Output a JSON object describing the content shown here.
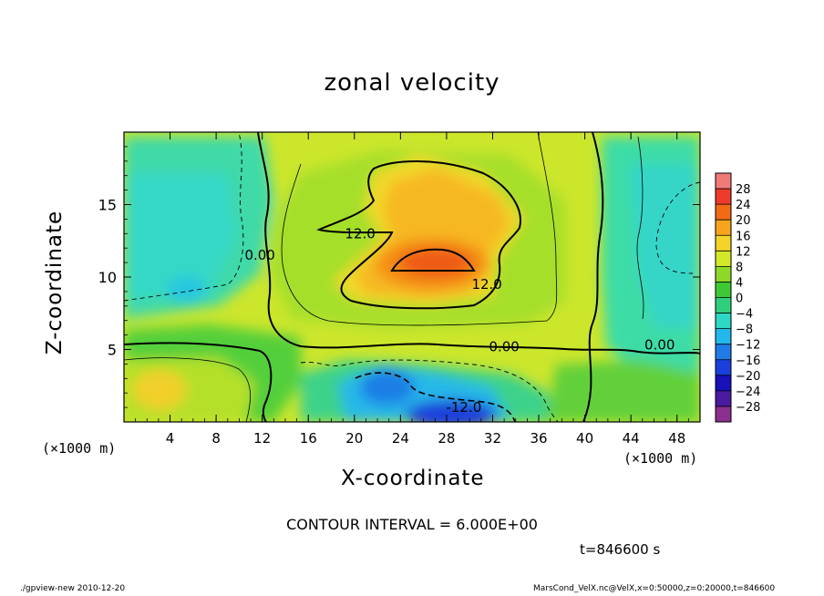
{
  "figure": {
    "title": "zonal velocity",
    "x_unit": "(×1000 m)",
    "x_unit_right": "(×1000 m)",
    "contour_interval": "CONTOUR INTERVAL = 6.000E+00",
    "time": "t=846600 s",
    "footer_left": "./gpview-new  2010-12-20",
    "footer_right": "MarsCond_VelX.nc@VelX,x=0:50000,z=0:20000,t=846600"
  },
  "chart_data": {
    "type": "heatmap",
    "title": "zonal velocity",
    "xlabel": "X-coordinate",
    "ylabel": "Z-coordinate",
    "xlim": [
      0,
      50
    ],
    "ylim": [
      0,
      20
    ],
    "xticks": [
      4,
      8,
      12,
      16,
      20,
      24,
      28,
      32,
      36,
      40,
      44,
      48
    ],
    "yticks": [
      5,
      10,
      15
    ],
    "colorbar": {
      "ticks": [
        28,
        24,
        20,
        16,
        12,
        8,
        4,
        0,
        -4,
        -8,
        -12,
        -16,
        -20,
        -24,
        -28
      ],
      "colors": [
        "#f07a7a",
        "#ee3a2a",
        "#f36a14",
        "#f6a51c",
        "#f4d428",
        "#d4e82a",
        "#8fd828",
        "#3ec934",
        "#2fd07c",
        "#2dd8c4",
        "#22b8ee",
        "#1f7be8",
        "#1a3fdc",
        "#1810b8",
        "#4a1aa0",
        "#8a2f8e"
      ]
    },
    "contour_labels": [
      {
        "text": "12.0",
        "x": 20.5,
        "z": 13.0
      },
      {
        "text": "12.0",
        "x": 31.5,
        "z": 9.5
      },
      {
        "text": "0.00",
        "x": 11.8,
        "z": 11.5
      },
      {
        "text": "0.00",
        "x": 33.0,
        "z": 5.2
      },
      {
        "text": "0.00",
        "x": 46.5,
        "z": 5.3
      },
      {
        "text": "-12.0",
        "x": 29.5,
        "z": 1.0
      }
    ]
  }
}
